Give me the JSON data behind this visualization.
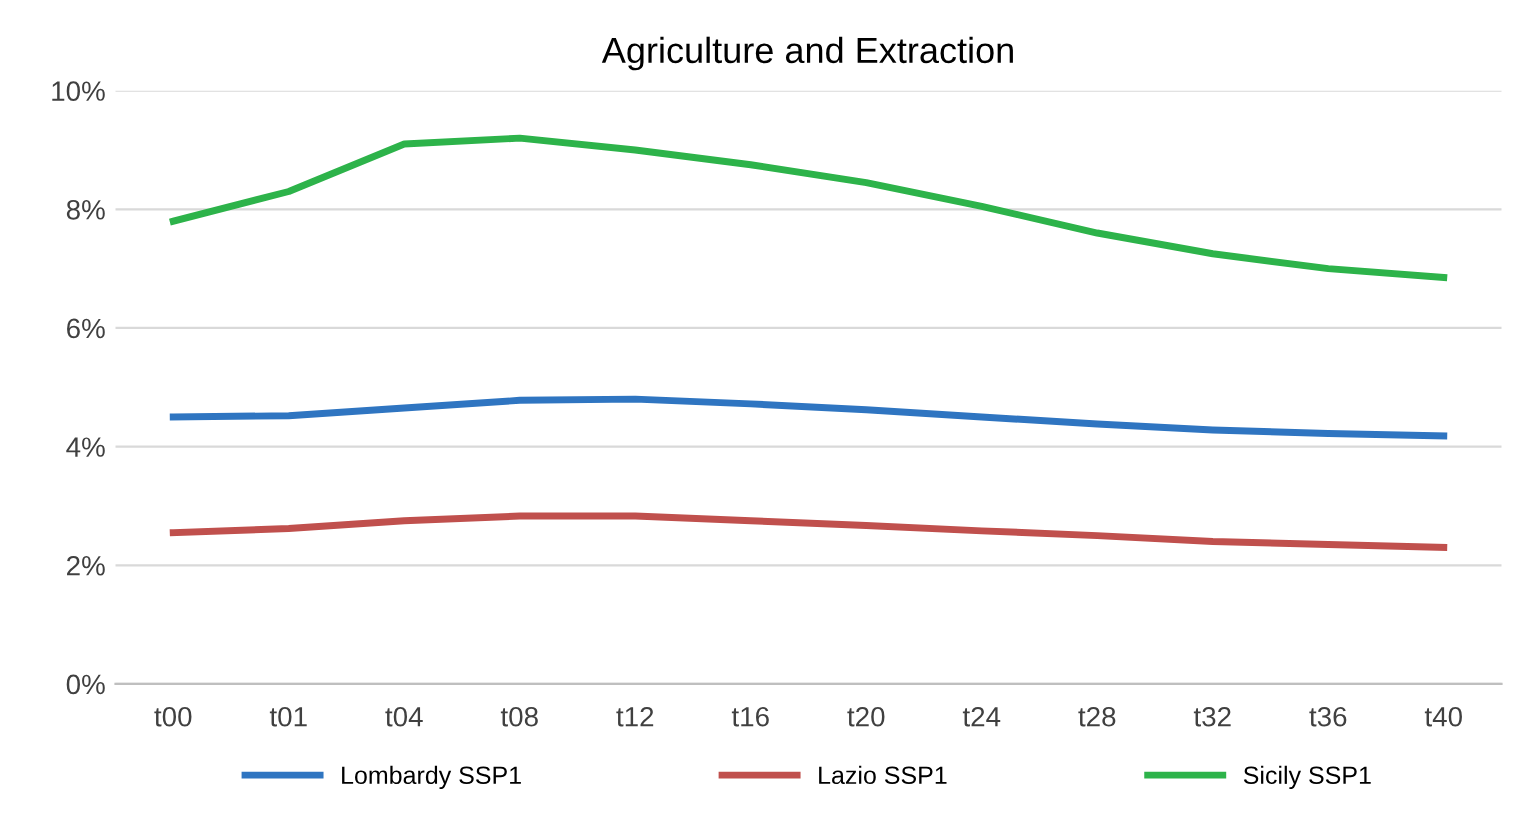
{
  "chart_data": {
    "type": "line",
    "title": "Agriculture and Extraction",
    "categories": [
      "t00",
      "t01",
      "t04",
      "t08",
      "t12",
      "t16",
      "t20",
      "t24",
      "t28",
      "t32",
      "t36",
      "t40"
    ],
    "series": [
      {
        "name": "Lombardy SSP1",
        "color": "#2f75c1",
        "values": [
          4.5,
          4.52,
          4.65,
          4.78,
          4.8,
          4.72,
          4.62,
          4.5,
          4.38,
          4.28,
          4.22,
          4.18
        ]
      },
      {
        "name": "Lazio SSP1",
        "color": "#c0504d",
        "values": [
          2.55,
          2.62,
          2.75,
          2.83,
          2.83,
          2.75,
          2.67,
          2.58,
          2.5,
          2.4,
          2.35,
          2.3
        ]
      },
      {
        "name": "Sicily SSP1",
        "color": "#2db34a",
        "values": [
          7.8,
          8.3,
          9.1,
          9.2,
          9.0,
          8.75,
          8.45,
          8.05,
          7.6,
          7.25,
          7.0,
          6.85
        ]
      }
    ],
    "ylim": [
      0,
      10
    ],
    "yticks": [
      {
        "value": 0,
        "label": "0%"
      },
      {
        "value": 2,
        "label": "2%"
      },
      {
        "value": 4,
        "label": "4%"
      },
      {
        "value": 6,
        "label": "6%"
      },
      {
        "value": 8,
        "label": "8%"
      },
      {
        "value": 10,
        "label": "10%"
      }
    ],
    "grid": "y",
    "legend": "bottom",
    "marker": "none",
    "line_style": "solid"
  }
}
